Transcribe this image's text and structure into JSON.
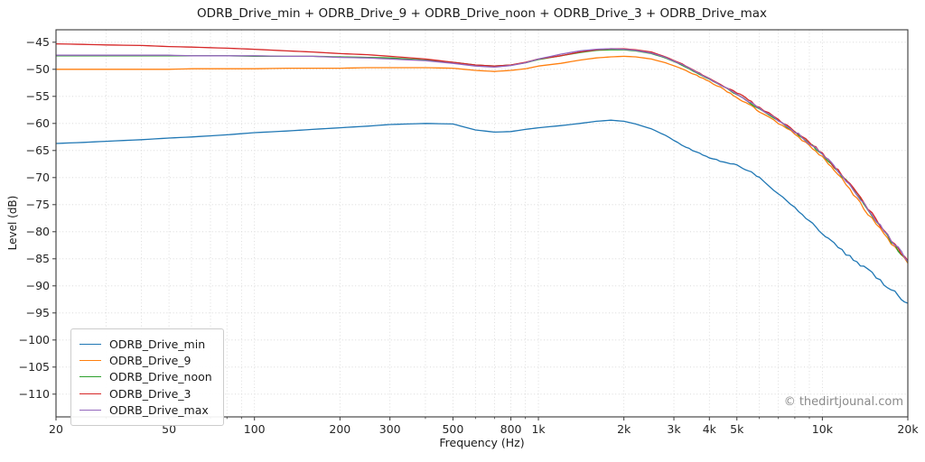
{
  "title": "ODRB_Drive_min + ODRB_Drive_9 + ODRB_Drive_noon + ODRB_Drive_3 + ODRB_Drive_max",
  "watermark": "© thedirtjounal.com",
  "colors": {
    "grid": "#d4d4d4",
    "spine": "#3a3a3a",
    "tick_text": "#262626",
    "watermark_text": "#8a8a8a"
  },
  "chart_data": {
    "type": "line",
    "title": "ODRB_Drive_min + ODRB_Drive_9 + ODRB_Drive_noon + ODRB_Drive_3 + ODRB_Drive_max",
    "xlabel": "Frequency (Hz)",
    "ylabel": "Level (dB)",
    "x_scale": "log",
    "xlim": [
      20,
      20000
    ],
    "ylim": [
      -114.2,
      -42.7
    ],
    "grid": "dotted",
    "legend_position": "lower left",
    "x_ticks": [
      {
        "value": 20,
        "label": "20"
      },
      {
        "value": 50,
        "label": "50"
      },
      {
        "value": 100,
        "label": "100"
      },
      {
        "value": 200,
        "label": "200"
      },
      {
        "value": 300,
        "label": "300"
      },
      {
        "value": 500,
        "label": "500"
      },
      {
        "value": 800,
        "label": "800"
      },
      {
        "value": 1000,
        "label": "1k"
      },
      {
        "value": 2000,
        "label": "2k"
      },
      {
        "value": 3000,
        "label": "3k"
      },
      {
        "value": 4000,
        "label": "4k"
      },
      {
        "value": 5000,
        "label": "5k"
      },
      {
        "value": 10000,
        "label": "10k"
      },
      {
        "value": 20000,
        "label": "20k"
      }
    ],
    "x_minor_ticks": [
      30,
      40,
      60,
      70,
      80,
      90,
      400,
      600,
      700,
      900,
      6000,
      7000,
      8000,
      9000
    ],
    "y_ticks": [
      -45,
      -50,
      -55,
      -60,
      -65,
      -70,
      -75,
      -80,
      -85,
      -90,
      -95,
      -100,
      -105,
      -110
    ],
    "treble_noise": {
      "start_hz": 2500,
      "amplitude_db": 0.4
    },
    "frequencies": [
      20,
      25,
      30,
      40,
      50,
      60,
      80,
      100,
      130,
      160,
      200,
      250,
      300,
      400,
      500,
      600,
      700,
      800,
      900,
      1000,
      1200,
      1400,
      1600,
      1800,
      2000,
      2200,
      2500,
      2800,
      3200,
      3600,
      4000,
      4500,
      5000,
      5500,
      6000,
      7000,
      8000,
      9000,
      10000,
      11000,
      12500,
      14000,
      16000,
      18000,
      20000
    ],
    "series": [
      {
        "name": "ODRB_Drive_min",
        "color": "#1f77b4",
        "values": [
          -63.7,
          -63.5,
          -63.3,
          -63.0,
          -62.7,
          -62.5,
          -62.1,
          -61.7,
          -61.4,
          -61.1,
          -60.8,
          -60.5,
          -60.2,
          -60.0,
          -60.1,
          -61.2,
          -61.6,
          -61.5,
          -61.1,
          -60.8,
          -60.4,
          -60.0,
          -59.6,
          -59.4,
          -59.6,
          -60.1,
          -61.0,
          -62.2,
          -64.0,
          -65.3,
          -66.3,
          -67.2,
          -67.7,
          -68.7,
          -70.0,
          -72.9,
          -75.5,
          -78.0,
          -80.3,
          -82.3,
          -84.7,
          -86.6,
          -89.0,
          -91.2,
          -93.2
        ]
      },
      {
        "name": "ODRB_Drive_9",
        "color": "#ff7f0e",
        "values": [
          -50.0,
          -50.0,
          -50.0,
          -50.0,
          -50.0,
          -49.9,
          -49.9,
          -49.9,
          -49.8,
          -49.8,
          -49.8,
          -49.7,
          -49.7,
          -49.7,
          -49.8,
          -50.2,
          -50.4,
          -50.2,
          -49.9,
          -49.4,
          -48.9,
          -48.3,
          -47.9,
          -47.7,
          -47.6,
          -47.7,
          -48.1,
          -48.8,
          -49.9,
          -51.1,
          -52.3,
          -53.7,
          -55.2,
          -56.5,
          -57.8,
          -59.9,
          -62.0,
          -64.1,
          -66.2,
          -68.6,
          -72.1,
          -75.6,
          -79.6,
          -82.9,
          -85.8
        ]
      },
      {
        "name": "ODRB_Drive_noon",
        "color": "#2ca02c",
        "values": [
          -47.5,
          -47.5,
          -47.5,
          -47.5,
          -47.5,
          -47.5,
          -47.5,
          -47.6,
          -47.6,
          -47.6,
          -47.7,
          -47.8,
          -47.9,
          -48.3,
          -48.7,
          -49.2,
          -49.4,
          -49.2,
          -48.8,
          -48.2,
          -47.5,
          -46.9,
          -46.5,
          -46.4,
          -46.4,
          -46.6,
          -47.1,
          -47.9,
          -49.2,
          -50.6,
          -51.9,
          -53.3,
          -54.6,
          -56.0,
          -57.4,
          -59.5,
          -61.6,
          -63.7,
          -65.8,
          -68.1,
          -71.4,
          -75.1,
          -79.1,
          -82.6,
          -85.6
        ]
      },
      {
        "name": "ODRB_Drive_3",
        "color": "#d62728",
        "values": [
          -45.3,
          -45.4,
          -45.5,
          -45.6,
          -45.8,
          -45.9,
          -46.1,
          -46.3,
          -46.6,
          -46.8,
          -47.1,
          -47.3,
          -47.6,
          -48.1,
          -48.7,
          -49.2,
          -49.4,
          -49.2,
          -48.7,
          -48.1,
          -47.5,
          -46.8,
          -46.4,
          -46.2,
          -46.2,
          -46.4,
          -46.8,
          -47.7,
          -49.0,
          -50.4,
          -51.7,
          -53.1,
          -54.3,
          -55.7,
          -57.1,
          -59.3,
          -61.4,
          -63.5,
          -65.5,
          -67.9,
          -71.1,
          -74.8,
          -78.8,
          -82.3,
          -85.3
        ]
      },
      {
        "name": "ODRB_Drive_max",
        "color": "#9467bd",
        "values": [
          -47.4,
          -47.4,
          -47.4,
          -47.4,
          -47.4,
          -47.5,
          -47.5,
          -47.5,
          -47.6,
          -47.6,
          -47.8,
          -47.9,
          -48.1,
          -48.4,
          -48.9,
          -49.4,
          -49.6,
          -49.3,
          -48.8,
          -48.1,
          -47.2,
          -46.6,
          -46.3,
          -46.2,
          -46.3,
          -46.5,
          -47.0,
          -47.8,
          -49.1,
          -50.5,
          -51.8,
          -53.2,
          -54.5,
          -55.9,
          -57.3,
          -59.4,
          -61.5,
          -63.6,
          -65.6,
          -68.0,
          -71.3,
          -74.9,
          -79.0,
          -82.4,
          -85.5
        ]
      }
    ]
  }
}
